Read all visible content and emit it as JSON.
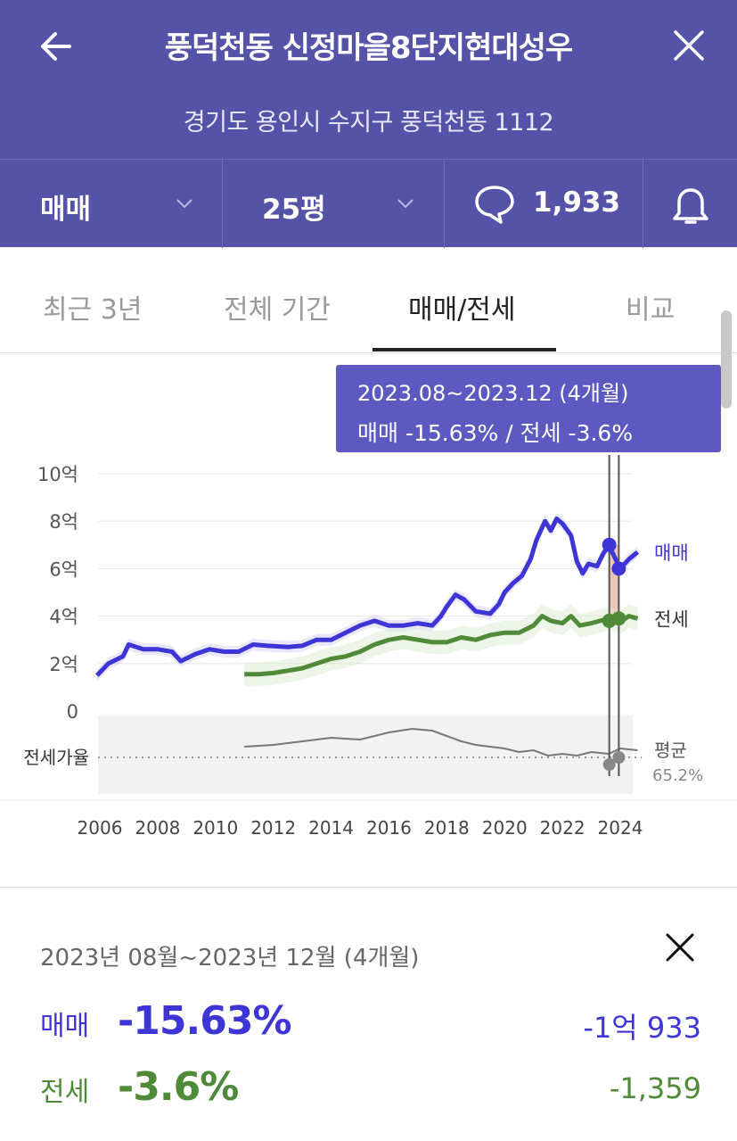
{
  "header": {
    "title": "풍덕천동 신정마을8단지현대성우",
    "address": "경기도 용인시 수지구 풍덕천동 1112"
  },
  "filters": {
    "trade_type": "매매",
    "area": "25평",
    "comment_count": "1,933"
  },
  "tabs": [
    {
      "label": "최근 3년",
      "active": false
    },
    {
      "label": "전체 기간",
      "active": false
    },
    {
      "label": "매매/전세",
      "active": true
    },
    {
      "label": "비교",
      "active": false
    }
  ],
  "tooltip": {
    "period": "2023.08~2023.12 (4개월)",
    "summary": "매매 -15.63%  /  전세 -3.6%"
  },
  "chart_data": {
    "type": "line",
    "x_ticks": [
      "2006",
      "2008",
      "2010",
      "2012",
      "2014",
      "2016",
      "2018",
      "2020",
      "2022",
      "2024"
    ],
    "y_ticks": [
      "0",
      "2억",
      "4억",
      "6억",
      "8억",
      "10억"
    ],
    "ylim": [
      0,
      10
    ],
    "ratio_label": "전세가율",
    "ratio_avg_label": "평균",
    "ratio_avg_value": "65.2%",
    "series": [
      {
        "name": "매매",
        "color": "#3d35d6",
        "points": [
          [
            2005.9,
            1.5
          ],
          [
            2006.3,
            2.0
          ],
          [
            2006.8,
            2.3
          ],
          [
            2007.0,
            2.8
          ],
          [
            2007.5,
            2.6
          ],
          [
            2008.0,
            2.6
          ],
          [
            2008.5,
            2.5
          ],
          [
            2008.8,
            2.1
          ],
          [
            2009.3,
            2.4
          ],
          [
            2009.8,
            2.6
          ],
          [
            2010.3,
            2.5
          ],
          [
            2010.8,
            2.5
          ],
          [
            2011.3,
            2.8
          ],
          [
            2011.8,
            2.75
          ],
          [
            2012.5,
            2.7
          ],
          [
            2013.0,
            2.75
          ],
          [
            2013.5,
            3.0
          ],
          [
            2014.0,
            3.0
          ],
          [
            2014.5,
            3.3
          ],
          [
            2015.0,
            3.6
          ],
          [
            2015.5,
            3.8
          ],
          [
            2016.0,
            3.6
          ],
          [
            2016.5,
            3.6
          ],
          [
            2017.0,
            3.7
          ],
          [
            2017.5,
            3.6
          ],
          [
            2017.8,
            4.0
          ],
          [
            2018.0,
            4.4
          ],
          [
            2018.3,
            4.9
          ],
          [
            2018.6,
            4.7
          ],
          [
            2019.0,
            4.2
          ],
          [
            2019.5,
            4.1
          ],
          [
            2019.8,
            4.5
          ],
          [
            2020.0,
            5.0
          ],
          [
            2020.3,
            5.4
          ],
          [
            2020.6,
            5.7
          ],
          [
            2020.9,
            6.4
          ],
          [
            2021.1,
            7.2
          ],
          [
            2021.4,
            8.0
          ],
          [
            2021.6,
            7.6
          ],
          [
            2021.8,
            8.1
          ],
          [
            2022.0,
            7.9
          ],
          [
            2022.3,
            7.4
          ],
          [
            2022.5,
            6.3
          ],
          [
            2022.7,
            5.8
          ],
          [
            2022.9,
            6.2
          ],
          [
            2023.2,
            6.1
          ],
          [
            2023.4,
            6.6
          ],
          [
            2023.6,
            7.0
          ],
          [
            2024.0,
            6.0
          ],
          [
            2024.3,
            6.4
          ],
          [
            2024.6,
            6.7
          ]
        ]
      },
      {
        "name": "전세",
        "color": "#4e8a38",
        "points": [
          [
            2011.0,
            1.55
          ],
          [
            2011.5,
            1.55
          ],
          [
            2012.0,
            1.6
          ],
          [
            2012.5,
            1.7
          ],
          [
            2013.0,
            1.8
          ],
          [
            2013.5,
            2.0
          ],
          [
            2014.0,
            2.2
          ],
          [
            2014.5,
            2.3
          ],
          [
            2015.0,
            2.5
          ],
          [
            2015.5,
            2.8
          ],
          [
            2016.0,
            3.0
          ],
          [
            2016.5,
            3.1
          ],
          [
            2017.0,
            3.0
          ],
          [
            2017.5,
            2.9
          ],
          [
            2018.0,
            2.9
          ],
          [
            2018.5,
            3.1
          ],
          [
            2019.0,
            3.0
          ],
          [
            2019.5,
            3.2
          ],
          [
            2020.0,
            3.3
          ],
          [
            2020.5,
            3.3
          ],
          [
            2021.0,
            3.6
          ],
          [
            2021.3,
            4.0
          ],
          [
            2021.6,
            3.8
          ],
          [
            2022.0,
            3.7
          ],
          [
            2022.3,
            4.0
          ],
          [
            2022.6,
            3.6
          ],
          [
            2023.0,
            3.7
          ],
          [
            2023.3,
            3.8
          ],
          [
            2023.6,
            3.9
          ],
          [
            2024.0,
            3.75
          ],
          [
            2024.3,
            4.0
          ],
          [
            2024.6,
            3.9
          ]
        ]
      }
    ],
    "ratio_series": [
      [
        2011.0,
        0.3
      ],
      [
        2012.0,
        0.35
      ],
      [
        2013.0,
        0.45
      ],
      [
        2014.0,
        0.55
      ],
      [
        2015.0,
        0.5
      ],
      [
        2016.0,
        0.7
      ],
      [
        2016.8,
        0.8
      ],
      [
        2017.5,
        0.75
      ],
      [
        2018.0,
        0.6
      ],
      [
        2018.5,
        0.45
      ],
      [
        2019.0,
        0.35
      ],
      [
        2019.5,
        0.3
      ],
      [
        2020.0,
        0.25
      ],
      [
        2020.5,
        0.15
      ],
      [
        2021.0,
        0.2
      ],
      [
        2021.5,
        0.05
      ],
      [
        2022.0,
        0.1
      ],
      [
        2022.5,
        0.05
      ],
      [
        2023.0,
        0.15
      ],
      [
        2023.6,
        0.1
      ],
      [
        2024.0,
        0.25
      ],
      [
        2024.6,
        0.2
      ]
    ],
    "highlight_range": [
      "2023.08",
      "2023.12"
    ]
  },
  "detail": {
    "period": "2023년 08월~2023년 12월 (4개월)",
    "rows": [
      {
        "label": "매매",
        "pct": "-15.63%",
        "amount": "-1억 933",
        "color": "#3d35d6"
      },
      {
        "label": "전세",
        "pct": "-3.6%",
        "amount": "-1,359",
        "color": "#4e8a38"
      }
    ]
  }
}
